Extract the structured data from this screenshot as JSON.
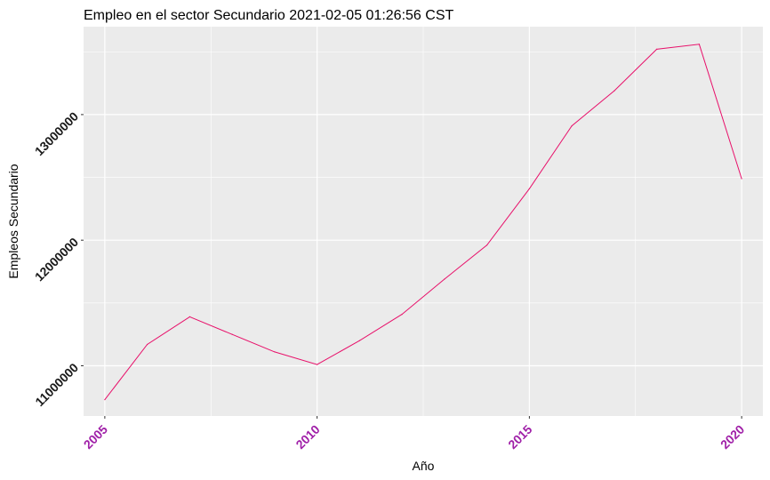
{
  "chart_data": {
    "type": "line",
    "title": "Empleo en el sector Secundario 2021-02-05 01:26:56 CST",
    "xlabel": "Año",
    "ylabel": "Empleos Secundario",
    "x_ticks": [
      "2005",
      "2010",
      "2015",
      "2020"
    ],
    "y_ticks": [
      "11000000",
      "12000000",
      "13000000"
    ],
    "xlim": [
      2004.5,
      2020.5
    ],
    "ylim": [
      10600000,
      13700000
    ],
    "grid": true,
    "series": [
      {
        "x": [
          2005,
          2006,
          2007,
          2008,
          2009,
          2010,
          2011,
          2012,
          2013,
          2014,
          2015,
          2016,
          2017,
          2018,
          2019,
          2020
        ],
        "values": [
          10730000,
          11170000,
          11390000,
          11250000,
          11110000,
          11010000,
          11200000,
          11410000,
          11690000,
          11960000,
          12410000,
          12910000,
          13190000,
          13520000,
          13560000,
          12490000
        ]
      }
    ],
    "colors": {
      "line": "#e8106a",
      "panel": "#ebebeb",
      "grid": "#ffffff",
      "xtick_text": "#a020a8",
      "ytick_text": "#1a1a1a"
    }
  }
}
